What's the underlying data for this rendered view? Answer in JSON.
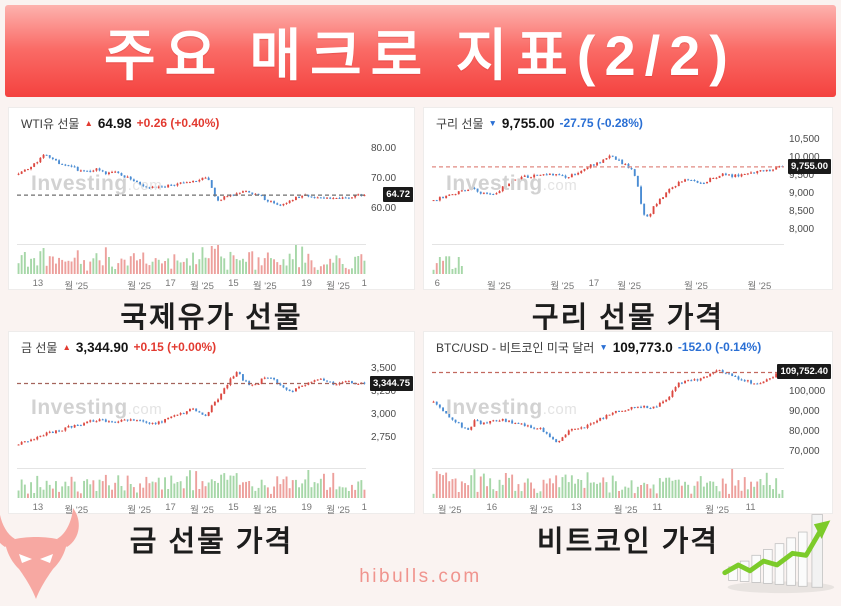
{
  "page": {
    "title": "주요 매크로 지표(2/2)",
    "footer": "hibulls.com",
    "watermark_bold": "Investing",
    "watermark_light": ".com"
  },
  "colors": {
    "banner_top": "#fdb2ae",
    "banner_bottom": "#f4423f",
    "up_red": "#e23a30",
    "down_blue": "#2a6fd4",
    "background": "#faf3f1"
  },
  "chart_data": [
    {
      "type": "candlestick",
      "name": "WTI유 선물",
      "direction": "up",
      "arrow": "▲",
      "price": "64.98",
      "change": "+0.26 (+0.40%)",
      "caption": "국제유가 선물",
      "last_label": "64.72",
      "last_value": 64.72,
      "range": [
        49,
        84.5
      ],
      "y_ticks": [
        {
          "label": "80.00",
          "value": 80
        },
        {
          "label": "70.00",
          "value": 70
        },
        {
          "label": "60.00",
          "value": 60
        }
      ],
      "x_labels": [
        {
          "label": "13",
          "pos": 0.06
        },
        {
          "label": "월 '25",
          "pos": 0.17
        },
        {
          "label": "월 '25",
          "pos": 0.35
        },
        {
          "label": "17",
          "pos": 0.44
        },
        {
          "label": "월 '25",
          "pos": 0.53
        },
        {
          "label": "15",
          "pos": 0.62
        },
        {
          "label": "월 '25",
          "pos": 0.71
        },
        {
          "label": "19",
          "pos": 0.83
        },
        {
          "label": "월 '25",
          "pos": 0.92
        },
        {
          "label": "1",
          "pos": 0.995
        }
      ],
      "trend": [
        [
          0,
          72.3
        ],
        [
          0.03,
          73.5
        ],
        [
          0.06,
          76.5
        ],
        [
          0.08,
          78.6
        ],
        [
          0.1,
          76.8
        ],
        [
          0.13,
          74.5
        ],
        [
          0.16,
          73.8
        ],
        [
          0.19,
          72.5
        ],
        [
          0.22,
          73.5
        ],
        [
          0.25,
          71.8
        ],
        [
          0.28,
          72.5
        ],
        [
          0.31,
          70.8
        ],
        [
          0.34,
          69.2
        ],
        [
          0.37,
          67.3
        ],
        [
          0.4,
          67.0
        ],
        [
          0.43,
          67.8
        ],
        [
          0.46,
          68.3
        ],
        [
          0.49,
          69.0
        ],
        [
          0.52,
          69.8
        ],
        [
          0.545,
          70.5
        ],
        [
          0.56,
          66.5
        ],
        [
          0.575,
          62.5
        ],
        [
          0.59,
          64.0
        ],
        [
          0.61,
          64.5
        ],
        [
          0.63,
          65.5
        ],
        [
          0.65,
          66.3
        ],
        [
          0.67,
          65.8
        ],
        [
          0.7,
          64.5
        ],
        [
          0.72,
          62.8
        ],
        [
          0.74,
          61.8
        ],
        [
          0.76,
          61.2
        ],
        [
          0.78,
          62.5
        ],
        [
          0.8,
          64.0
        ],
        [
          0.83,
          64.8
        ],
        [
          0.85,
          64.2
        ],
        [
          0.87,
          63.8
        ],
        [
          0.89,
          63.6
        ],
        [
          0.91,
          63.5
        ],
        [
          0.93,
          63.8
        ],
        [
          0.96,
          64.2
        ],
        [
          1,
          64.8
        ]
      ],
      "seed": 7,
      "up_color": "#dc4840",
      "down_color": "#4a8cd3",
      "vol_up": "#a6d7a8",
      "vol_down": "#eda09c",
      "dash_color": "#6f6f6f"
    },
    {
      "type": "candlestick",
      "name": "구리 선물",
      "direction": "down",
      "arrow": "▼",
      "price": "9,755.00",
      "change": "-27.75 (-0.28%)",
      "caption": "구리 선물 가격",
      "last_label": "9,755.00",
      "last_value": 9755,
      "range": [
        7650,
        10620
      ],
      "y_ticks": [
        {
          "label": "10,500",
          "value": 10500
        },
        {
          "label": "10,000",
          "value": 10000
        },
        {
          "label": "9,500",
          "value": 9500
        },
        {
          "label": "9,000",
          "value": 9000
        },
        {
          "label": "8,500",
          "value": 8500
        },
        {
          "label": "8,000",
          "value": 8000
        }
      ],
      "x_labels": [
        {
          "label": "6",
          "pos": 0.015
        },
        {
          "label": "월 '25",
          "pos": 0.19
        },
        {
          "label": "월 '25",
          "pos": 0.37
        },
        {
          "label": "17",
          "pos": 0.46
        },
        {
          "label": "월 '25",
          "pos": 0.56
        },
        {
          "label": "월 '25",
          "pos": 0.75
        },
        {
          "label": "월 '25",
          "pos": 0.93
        }
      ],
      "trend": [
        [
          0,
          8820
        ],
        [
          0.04,
          8950
        ],
        [
          0.08,
          9080
        ],
        [
          0.11,
          9150
        ],
        [
          0.14,
          9000
        ],
        [
          0.17,
          8950
        ],
        [
          0.2,
          9200
        ],
        [
          0.23,
          9380
        ],
        [
          0.26,
          9480
        ],
        [
          0.3,
          9500
        ],
        [
          0.33,
          9550
        ],
        [
          0.36,
          9500
        ],
        [
          0.39,
          9480
        ],
        [
          0.42,
          9650
        ],
        [
          0.45,
          9800
        ],
        [
          0.48,
          9900
        ],
        [
          0.5,
          10050
        ],
        [
          0.52,
          10000
        ],
        [
          0.55,
          9800
        ],
        [
          0.57,
          9700
        ],
        [
          0.585,
          9200
        ],
        [
          0.6,
          8500
        ],
        [
          0.615,
          8300
        ],
        [
          0.63,
          8650
        ],
        [
          0.65,
          8850
        ],
        [
          0.68,
          9150
        ],
        [
          0.71,
          9350
        ],
        [
          0.74,
          9400
        ],
        [
          0.77,
          9300
        ],
        [
          0.8,
          9450
        ],
        [
          0.83,
          9550
        ],
        [
          0.86,
          9500
        ],
        [
          0.89,
          9550
        ],
        [
          0.92,
          9600
        ],
        [
          0.95,
          9650
        ],
        [
          0.98,
          9720
        ],
        [
          1,
          9755
        ]
      ],
      "seed": 13,
      "vol_cutoff": 0.085,
      "up_color": "#dc4840",
      "down_color": "#4a8cd3",
      "vol_up": "#a6d7a8",
      "vol_down": "#eda09c",
      "dash_color": "#e08a82"
    },
    {
      "type": "candlestick",
      "name": "금 선물",
      "direction": "up",
      "arrow": "▲",
      "price": "3,344.90",
      "change": "+0.15 (+0.00%)",
      "caption": "금 선물 가격",
      "last_label": "3,344.75",
      "last_value": 3344.75,
      "range": [
        2450,
        3600
      ],
      "y_ticks": [
        {
          "label": "3,500",
          "value": 3500
        },
        {
          "label": "3,250",
          "value": 3250
        },
        {
          "label": "3,000",
          "value": 3000
        },
        {
          "label": "2,750",
          "value": 2750
        }
      ],
      "x_labels": [
        {
          "label": "13",
          "pos": 0.06
        },
        {
          "label": "월 '25",
          "pos": 0.17
        },
        {
          "label": "월 '25",
          "pos": 0.35
        },
        {
          "label": "17",
          "pos": 0.44
        },
        {
          "label": "월 '25",
          "pos": 0.53
        },
        {
          "label": "15",
          "pos": 0.62
        },
        {
          "label": "월 '25",
          "pos": 0.71
        },
        {
          "label": "19",
          "pos": 0.83
        },
        {
          "label": "월 '25",
          "pos": 0.92
        },
        {
          "label": "1",
          "pos": 0.995
        }
      ],
      "trend": [
        [
          0,
          2685
        ],
        [
          0.04,
          2740
        ],
        [
          0.08,
          2800
        ],
        [
          0.12,
          2840
        ],
        [
          0.15,
          2880
        ],
        [
          0.18,
          2900
        ],
        [
          0.21,
          2940
        ],
        [
          0.24,
          2960
        ],
        [
          0.27,
          2920
        ],
        [
          0.3,
          2960
        ],
        [
          0.33,
          2950
        ],
        [
          0.36,
          2930
        ],
        [
          0.39,
          2910
        ],
        [
          0.42,
          2940
        ],
        [
          0.45,
          2990
        ],
        [
          0.48,
          3030
        ],
        [
          0.5,
          3080
        ],
        [
          0.52,
          3030
        ],
        [
          0.54,
          3000
        ],
        [
          0.56,
          3100
        ],
        [
          0.58,
          3200
        ],
        [
          0.6,
          3320
        ],
        [
          0.62,
          3430
        ],
        [
          0.635,
          3480
        ],
        [
          0.65,
          3380
        ],
        [
          0.67,
          3330
        ],
        [
          0.69,
          3340
        ],
        [
          0.71,
          3420
        ],
        [
          0.73,
          3400
        ],
        [
          0.75,
          3350
        ],
        [
          0.77,
          3300
        ],
        [
          0.79,
          3260
        ],
        [
          0.81,
          3300
        ],
        [
          0.83,
          3330
        ],
        [
          0.85,
          3360
        ],
        [
          0.87,
          3400
        ],
        [
          0.89,
          3370
        ],
        [
          0.91,
          3330
        ],
        [
          0.93,
          3350
        ],
        [
          0.95,
          3370
        ],
        [
          0.97,
          3350
        ],
        [
          1,
          3344.75
        ]
      ],
      "seed": 21,
      "up_color": "#dc4840",
      "down_color": "#4a8cd3",
      "vol_up": "#a6d7a8",
      "vol_down": "#eda09c",
      "dash_color": "#a4645c"
    },
    {
      "type": "candlestick",
      "name": "BTC/USD - 비트코인 미국 달러",
      "direction": "down",
      "arrow": "▼",
      "price": "109,773.0",
      "change": "-152.0 (-0.14%)",
      "caption": "비트코인 가격",
      "last_label": "109,752.40",
      "last_value": 109752.4,
      "range": [
        63000,
        116000
      ],
      "y_ticks": [
        {
          "label": "100,000",
          "value": 100000
        },
        {
          "label": "90,000",
          "value": 90000
        },
        {
          "label": "80,000",
          "value": 80000
        },
        {
          "label": "70,000",
          "value": 70000
        }
      ],
      "x_labels": [
        {
          "label": "월 '25",
          "pos": 0.05
        },
        {
          "label": "16",
          "pos": 0.17
        },
        {
          "label": "월 '25",
          "pos": 0.31
        },
        {
          "label": "13",
          "pos": 0.41
        },
        {
          "label": "월 '25",
          "pos": 0.55
        },
        {
          "label": "11",
          "pos": 0.64
        },
        {
          "label": "월 '25",
          "pos": 0.81
        },
        {
          "label": "11",
          "pos": 0.905
        }
      ],
      "trend": [
        [
          0,
          95000
        ],
        [
          0.02,
          92000
        ],
        [
          0.04,
          88500
        ],
        [
          0.06,
          86000
        ],
        [
          0.08,
          83000
        ],
        [
          0.1,
          80500
        ],
        [
          0.12,
          86500
        ],
        [
          0.14,
          84000
        ],
        [
          0.16,
          85000
        ],
        [
          0.18,
          85500
        ],
        [
          0.2,
          86000
        ],
        [
          0.22,
          85000
        ],
        [
          0.24,
          84000
        ],
        [
          0.26,
          83500
        ],
        [
          0.28,
          82500
        ],
        [
          0.3,
          82000
        ],
        [
          0.32,
          80000
        ],
        [
          0.34,
          76500
        ],
        [
          0.355,
          74800
        ],
        [
          0.37,
          78000
        ],
        [
          0.39,
          80500
        ],
        [
          0.41,
          82000
        ],
        [
          0.43,
          82500
        ],
        [
          0.45,
          84000
        ],
        [
          0.47,
          86000
        ],
        [
          0.49,
          87500
        ],
        [
          0.51,
          89500
        ],
        [
          0.53,
          90500
        ],
        [
          0.55,
          91000
        ],
        [
          0.57,
          92000
        ],
        [
          0.59,
          93000
        ],
        [
          0.61,
          92500
        ],
        [
          0.63,
          92000
        ],
        [
          0.65,
          94000
        ],
        [
          0.67,
          96000
        ],
        [
          0.685,
          100000
        ],
        [
          0.7,
          104000
        ],
        [
          0.72,
          105000
        ],
        [
          0.74,
          105500
        ],
        [
          0.76,
          106500
        ],
        [
          0.78,
          108000
        ],
        [
          0.8,
          109500
        ],
        [
          0.82,
          110800
        ],
        [
          0.84,
          109000
        ],
        [
          0.86,
          108000
        ],
        [
          0.88,
          106500
        ],
        [
          0.9,
          105500
        ],
        [
          0.92,
          103800
        ],
        [
          0.94,
          104500
        ],
        [
          0.96,
          106500
        ],
        [
          0.98,
          108500
        ],
        [
          1,
          109752.4
        ]
      ],
      "seed": 42,
      "up_color": "#dc4840",
      "down_color": "#4a8cd3",
      "vol_up": "#a6d7a8",
      "vol_down": "#eda09c",
      "dash_color": "#c2695f"
    }
  ]
}
